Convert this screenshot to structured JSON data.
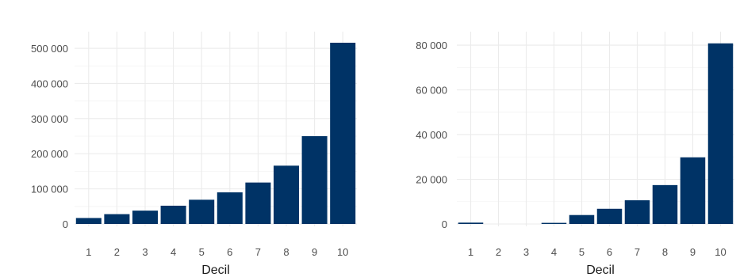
{
  "colors": {
    "bar": "#003366",
    "grid": "#ebebeb",
    "text": "#4d4d4d"
  },
  "chart_data": [
    {
      "type": "bar",
      "title": "",
      "xlabel": "Decil",
      "ylabel": "",
      "categories": [
        "1",
        "2",
        "3",
        "4",
        "5",
        "6",
        "7",
        "8",
        "9",
        "10"
      ],
      "values": [
        17000,
        28000,
        38000,
        52000,
        69000,
        90000,
        118000,
        166000,
        250000,
        516000
      ],
      "ylim": [
        0,
        525000
      ],
      "yticks": [
        0,
        100000,
        200000,
        300000,
        400000,
        500000
      ],
      "ytick_labels": [
        "0",
        "100 000",
        "200 000",
        "300 000",
        "400 000",
        "500 000"
      ],
      "grid": true,
      "legend": "none"
    },
    {
      "type": "bar",
      "title": "",
      "xlabel": "Decil",
      "ylabel": "",
      "categories": [
        "1",
        "2",
        "3",
        "4",
        "5",
        "6",
        "7",
        "8",
        "9",
        "10"
      ],
      "values": [
        600,
        0,
        0,
        500,
        4000,
        6800,
        10600,
        17400,
        29800,
        80800
      ],
      "ylim": [
        0,
        82500
      ],
      "yticks": [
        0,
        20000,
        40000,
        60000,
        80000
      ],
      "ytick_labels": [
        "0",
        "20 000",
        "40 000",
        "60 000",
        "80 000"
      ],
      "grid": true,
      "legend": "none"
    }
  ]
}
